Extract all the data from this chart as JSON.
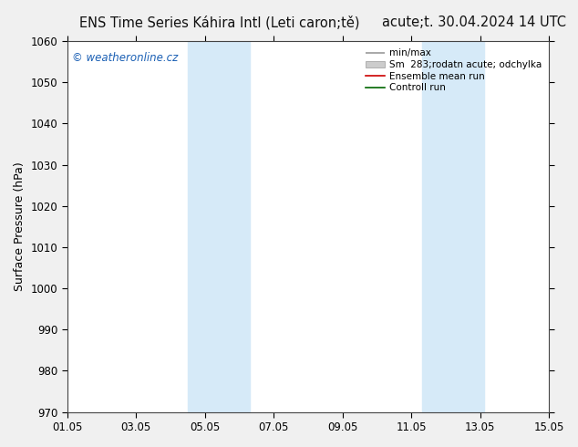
{
  "title_left": "ENS Time Series Káhira Intl (Leti caron;tě)",
  "title_right": "acute;t. 30.04.2024 14 UTC",
  "ylabel": "Surface Pressure (hPa)",
  "ylim": [
    970,
    1060
  ],
  "yticks": [
    970,
    980,
    990,
    1000,
    1010,
    1020,
    1030,
    1040,
    1050,
    1060
  ],
  "xtick_labels": [
    "01.05",
    "03.05",
    "05.05",
    "07.05",
    "09.05",
    "11.05",
    "13.05",
    "15.05"
  ],
  "xtick_positions": [
    0,
    2,
    4,
    6,
    8,
    10,
    12,
    14
  ],
  "shaded_bands": [
    {
      "xstart": 3.5,
      "xend": 5.3
    },
    {
      "xstart": 10.3,
      "xend": 12.1
    }
  ],
  "band_color": "#d6eaf8",
  "band_alpha": 1.0,
  "watermark": "© weatheronline.cz",
  "watermark_color": "#1a5fb4",
  "watermark_fontsize": 8.5,
  "legend_labels": [
    "min/max",
    "Sm  283;rodatn acute; odchylka",
    "Ensemble mean run",
    "Controll run"
  ],
  "background_color": "#f0f0f0",
  "plot_bg_color": "#ffffff",
  "title_fontsize": 10.5,
  "axis_label_fontsize": 9,
  "tick_fontsize": 8.5,
  "border_color": "#444444"
}
